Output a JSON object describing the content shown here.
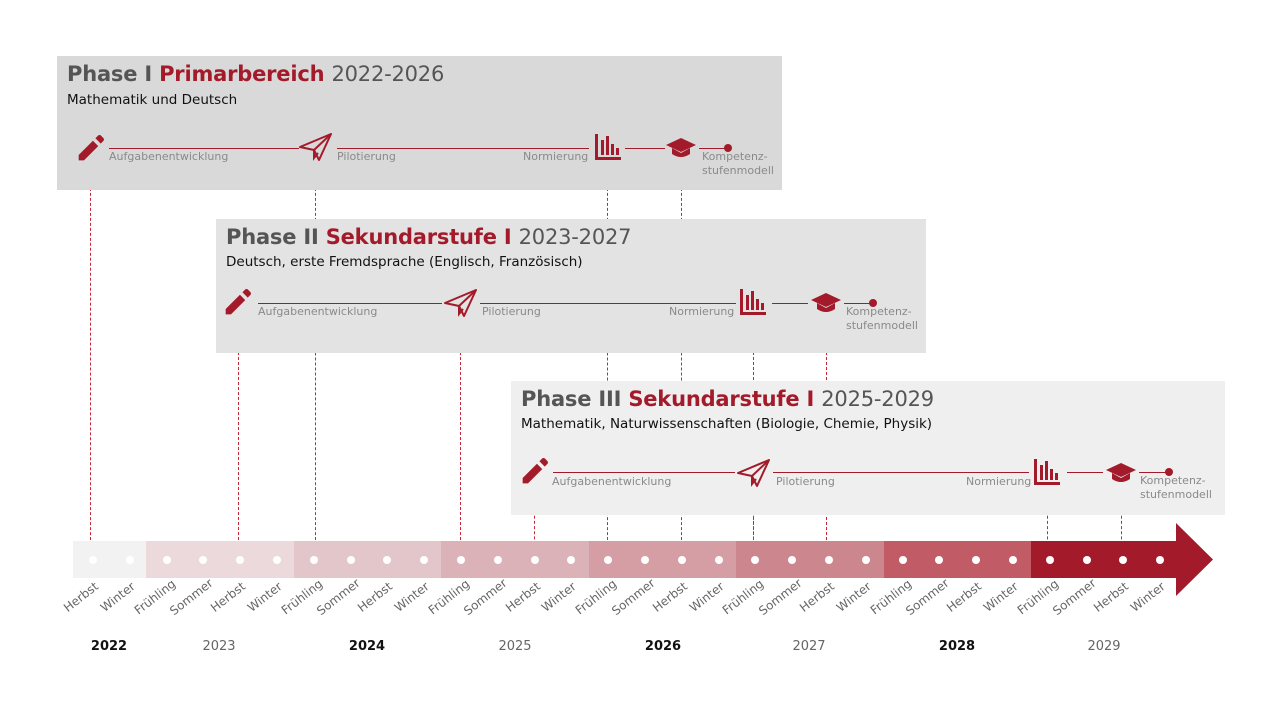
{
  "phases": [
    {
      "phase": "Phase I",
      "subject": "Primarbereich",
      "years": "2022-2026",
      "description": "Mathematik und Deutsch",
      "steps": {
        "task_development": "Aufgabenentwicklung",
        "piloting": "Pilotierung",
        "norming": "Normierung",
        "competence_model_line1": "Kompetenz-",
        "competence_model_line2": "stufenmodell"
      }
    },
    {
      "phase": "Phase II",
      "subject": "Sekundarstufe I",
      "years": "2023-2027",
      "description": "Deutsch, erste Fremdsprache (Englisch, Französisch)",
      "steps": {
        "task_development": "Aufgabenentwicklung",
        "piloting": "Pilotierung",
        "norming": "Normierung",
        "competence_model_line1": "Kompetenz-",
        "competence_model_line2": "stufenmodell"
      }
    },
    {
      "phase": "Phase III",
      "subject": "Sekundarstufe I",
      "years": "2025-2029",
      "description": "Mathematik, Naturwissenschaften  (Biologie, Chemie, Physik)",
      "steps": {
        "task_development": "Aufgabenentwicklung",
        "piloting": "Pilotierung",
        "norming": "Normierung",
        "competence_model_line1": "Kompetenz-",
        "competence_model_line2": "stufenmodell"
      }
    }
  ],
  "timeline": {
    "seasons": [
      "Herbst",
      "Winter",
      "Frühling",
      "Sommer",
      "Herbst",
      "Winter",
      "Frühling",
      "Sommer",
      "Herbst",
      "Winter",
      "Frühling",
      "Sommer",
      "Herbst",
      "Winter",
      "Frühling",
      "Sommer",
      "Herbst",
      "Winter",
      "Frühling",
      "Sommer",
      "Herbst",
      "Winter",
      "Frühling",
      "Sommer",
      "Herbst",
      "Winter",
      "Frühling",
      "Sommer",
      "Herbst",
      "Winter"
    ],
    "years": [
      "2022",
      "2023",
      "2024",
      "2025",
      "2026",
      "2027",
      "2028",
      "2029"
    ]
  },
  "colors": {
    "accent": "#a31b2a",
    "panel_phase1": "#d9d9d9",
    "panel_phase2": "#e3e3e3",
    "panel_phase3": "#efefef",
    "timeline_segments": [
      "#f2f2f2",
      "#ecd9db",
      "#e3c6ca",
      "#dab2b7",
      "#d49ea4",
      "#cc868d",
      "#c15c66",
      "#a31b2a"
    ]
  },
  "icons": {
    "task_development": "pencil-icon",
    "piloting": "paper-plane-icon",
    "norming": "bar-chart-icon",
    "competence_model": "graduation-cap-icon"
  }
}
